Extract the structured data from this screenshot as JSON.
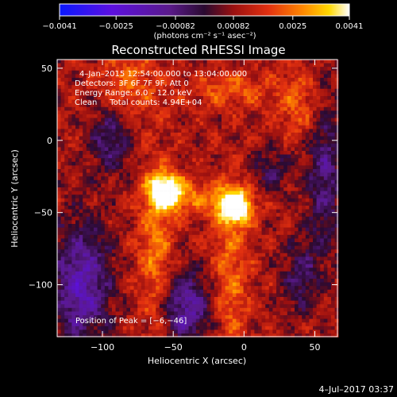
{
  "chart_data": {
    "type": "heatmap",
    "title": "Reconstructed RHESSI Image",
    "xlabel": "Heliocentric X (arcsec)",
    "ylabel": "Heliocentric Y (arcsec)",
    "xlim": [
      -132,
      66
    ],
    "ylim": [
      -136,
      56
    ],
    "x_ticks": [
      -100,
      -50,
      0,
      50
    ],
    "y_ticks": [
      -100,
      -50,
      0,
      50
    ],
    "x_tick_labels": [
      "−100",
      "−50",
      "0",
      "50"
    ],
    "y_tick_labels": [
      "−100",
      "−50",
      "0",
      "50"
    ],
    "colorbar": {
      "ticks": [
        -0.0041,
        -0.0025,
        -0.00082,
        0.00082,
        0.0025,
        0.0041
      ],
      "tick_labels": [
        "−0.0041",
        "−0.0025",
        "−0.00082",
        "0.00082",
        "0.0025",
        "0.0041"
      ],
      "unit_line": "(photons cm⁻² s⁻¹ asec⁻²)",
      "min": -0.0041,
      "max": 0.0041
    },
    "sources": [
      {
        "x": -55,
        "y": -35,
        "intensity": 1.0
      },
      {
        "x": -6,
        "y": -46,
        "intensity": 1.0
      }
    ],
    "peak": [
      -6,
      -46
    ],
    "annotations": [
      "4–Jan–2015 12:54:00.000 to 13:04:00.000",
      "Detectors: 3F 6F 7F 9F, Att 0",
      "Energy Range: 6.0 – 12.0 keV",
      "Clean     Total counts: 4.94E+04",
      "Position of Peak = [−6,−46]"
    ],
    "footer_timestamp": "4–Jul–2017 03:37",
    "colors": {
      "background": "#000000",
      "negative_end": "#1a00ff",
      "mid": "#3a0a5e",
      "positive_end": "#ffffff"
    }
  }
}
